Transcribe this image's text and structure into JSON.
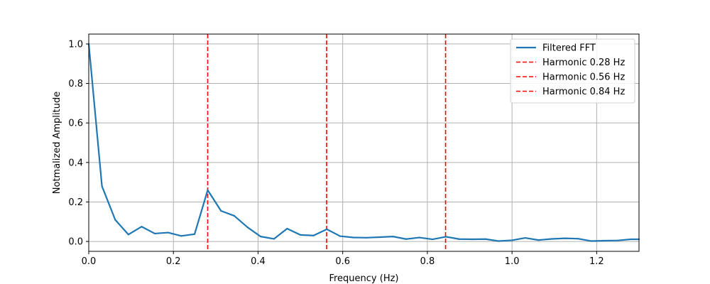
{
  "chart_data": {
    "type": "line",
    "title": "",
    "xlabel": "Frequency (Hz)",
    "ylabel": "Notmalized Amplitude",
    "xlim": [
      0,
      1.3
    ],
    "ylim": [
      -0.05,
      1.05
    ],
    "xticks": [
      0.0,
      0.2,
      0.4,
      0.6,
      0.8,
      1.0,
      1.2
    ],
    "xtick_labels": [
      "0.0",
      "0.2",
      "0.4",
      "0.6",
      "0.8",
      "1.0",
      "1.2"
    ],
    "yticks": [
      0.0,
      0.2,
      0.4,
      0.6,
      0.8,
      1.0
    ],
    "ytick_labels": [
      "0.0",
      "0.2",
      "0.4",
      "0.6",
      "0.8",
      "1.0"
    ],
    "grid": true,
    "legend_position": "top-right",
    "series": [
      {
        "name": "Filtered FFT",
        "color": "#1f77b4",
        "style": "solid",
        "x": [
          0.0,
          0.0312,
          0.0625,
          0.0937,
          0.125,
          0.156,
          0.1875,
          0.2187,
          0.25,
          0.281,
          0.3125,
          0.3437,
          0.375,
          0.406,
          0.4375,
          0.4687,
          0.5,
          0.531,
          0.5625,
          0.5937,
          0.625,
          0.656,
          0.6875,
          0.7187,
          0.75,
          0.781,
          0.8125,
          0.8437,
          0.875,
          0.906,
          0.9375,
          0.9687,
          1.0,
          1.031,
          1.0625,
          1.0937,
          1.125,
          1.156,
          1.1875,
          1.2187,
          1.25,
          1.281,
          1.3
        ],
        "y": [
          1.0,
          0.28,
          0.11,
          0.035,
          0.075,
          0.04,
          0.045,
          0.028,
          0.037,
          0.26,
          0.155,
          0.13,
          0.072,
          0.025,
          0.013,
          0.065,
          0.033,
          0.03,
          0.062,
          0.027,
          0.02,
          0.019,
          0.022,
          0.025,
          0.012,
          0.02,
          0.011,
          0.024,
          0.012,
          0.011,
          0.012,
          0.002,
          0.006,
          0.018,
          0.007,
          0.013,
          0.016,
          0.014,
          0.002,
          0.004,
          0.005,
          0.011,
          0.011
        ]
      }
    ],
    "vlines": [
      {
        "name": "Harmonic 0.28 Hz",
        "x": 0.281,
        "color": "#ff0000",
        "style": "dashed"
      },
      {
        "name": "Harmonic 0.56 Hz",
        "x": 0.562,
        "color": "#ff0000",
        "style": "dashed"
      },
      {
        "name": "Harmonic 0.84 Hz",
        "x": 0.843,
        "color": "#ff0000",
        "style": "dashed"
      }
    ]
  }
}
